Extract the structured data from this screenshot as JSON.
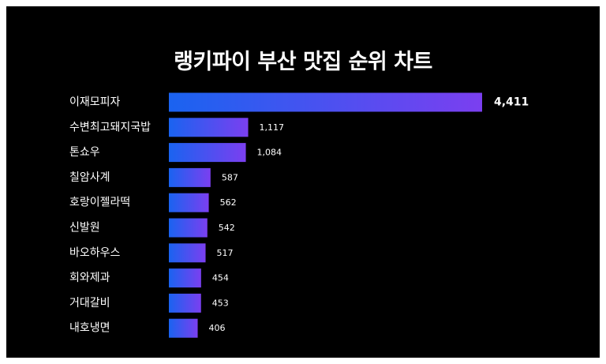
{
  "chart_data": {
    "type": "bar",
    "orientation": "horizontal",
    "title": "랭키파이 부산 맛집 순위 차트",
    "categories": [
      "이재모피자",
      "수변최고돼지국밥",
      "톤쇼우",
      "칠암사계",
      "호랑이젤라떡",
      "신발원",
      "바오하우스",
      "회와제과",
      "거대갈비",
      "내호냉면"
    ],
    "values": [
      4411,
      1117,
      1084,
      587,
      562,
      542,
      517,
      454,
      453,
      406
    ],
    "value_labels": [
      "4,411",
      "1,117",
      "1,084",
      "587",
      "562",
      "542",
      "517",
      "454",
      "453",
      "406"
    ],
    "xlabel": "",
    "ylabel": "",
    "xlim": [
      0,
      4411
    ],
    "grid": false,
    "legend": "none",
    "colors": {
      "background": "#000000",
      "bar_gradient_start": "#1a63f0",
      "bar_gradient_end": "#7b3ff0",
      "text": "#ffffff"
    }
  }
}
